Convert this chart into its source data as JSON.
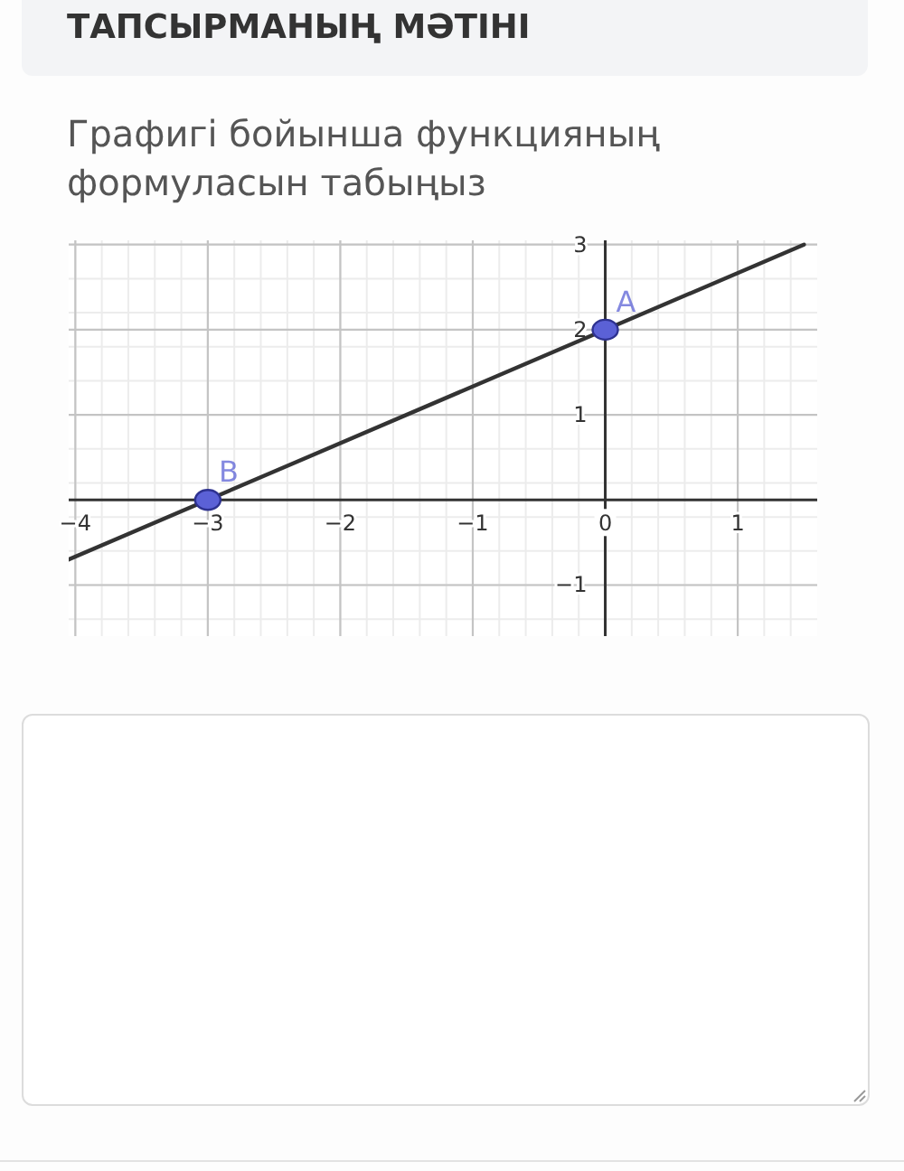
{
  "chart_data": {
    "type": "line",
    "title": "ТАПСЫРМАНЫҢ МӘТІНІ",
    "subtitle": "Графигі бойынша функцияның формуласын табыңыз",
    "series": [
      {
        "type": "line",
        "x": [
          -4.05,
          1.5
        ],
        "values": [
          -0.7,
          3
        ],
        "color": "#333333",
        "marker": "none"
      },
      {
        "type": "scatter",
        "x": [
          -3,
          0
        ],
        "values": [
          0,
          2
        ],
        "color": "#5b61d6",
        "marker": "circle"
      }
    ],
    "annotations": [
      {
        "text": "B",
        "x": -3,
        "y": 0
      },
      {
        "text": "A",
        "x": 0,
        "y": 2
      }
    ],
    "xlim": [
      -4.05,
      1.6
    ],
    "ylim": [
      -1.6,
      3.05
    ],
    "xticks": [
      -4,
      -3,
      -2,
      -1,
      0,
      1
    ],
    "yticks": [
      -1,
      1,
      2,
      3
    ],
    "grid": true
  }
}
